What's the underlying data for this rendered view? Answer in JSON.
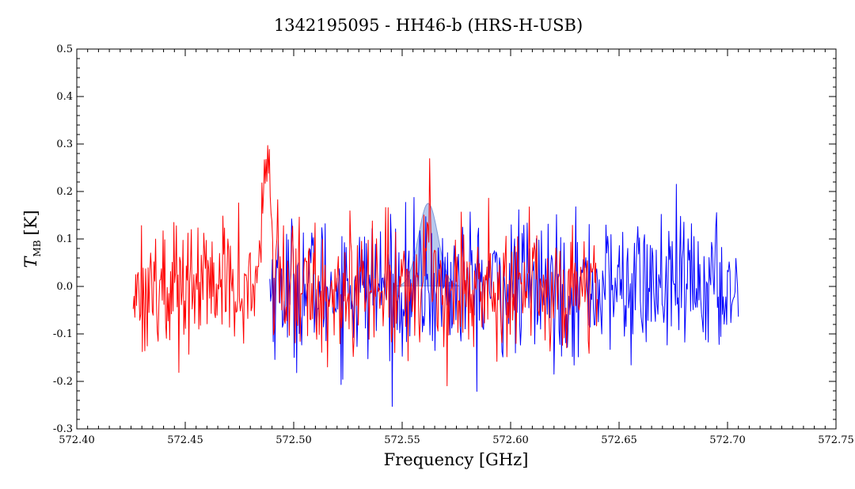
{
  "chart_data": {
    "type": "line",
    "title": "1342195095 - HH46-b (HRS-H-USB)",
    "xlabel": "Frequency [GHz]",
    "ylabel_main": "T",
    "ylabel_sub": "MB",
    "ylabel_unit": "[K]",
    "xlim": [
      572.4,
      572.75
    ],
    "ylim": [
      -0.3,
      0.5
    ],
    "x_ticks": [
      572.4,
      572.45,
      572.5,
      572.55,
      572.6,
      572.65,
      572.7,
      572.75
    ],
    "x_tick_labels": [
      "572.40",
      "572.45",
      "572.50",
      "572.55",
      "572.60",
      "572.65",
      "572.70",
      "572.75"
    ],
    "y_ticks": [
      -0.3,
      -0.2,
      -0.1,
      0.0,
      0.1,
      0.2,
      0.3,
      0.4,
      0.5
    ],
    "y_tick_labels": [
      "-0.3",
      "-0.2",
      "-0.1",
      "0.0",
      "0.1",
      "0.2",
      "0.3",
      "0.4",
      "0.5"
    ],
    "grid": false,
    "series": [
      {
        "color": "#0000ff",
        "x_range": [
          572.489,
          572.705
        ],
        "baseline": 0.0,
        "noise_amplitude": 0.085,
        "n_points": 560,
        "features": []
      },
      {
        "color": "#ff0000",
        "x_range": [
          572.426,
          572.64
        ],
        "baseline": 0.0,
        "noise_amplitude": 0.08,
        "n_points": 560,
        "features": [
          {
            "x": 572.4875,
            "height": 0.28,
            "width": 0.0017
          },
          {
            "x": 572.5625,
            "height": 0.12,
            "width": 0.0012
          }
        ]
      }
    ],
    "highlight": {
      "shape": "gaussian-fill",
      "color": "#9fb7e8",
      "center": 572.562,
      "peak": 0.175,
      "sigma": 0.0045,
      "base": 0.0
    }
  }
}
